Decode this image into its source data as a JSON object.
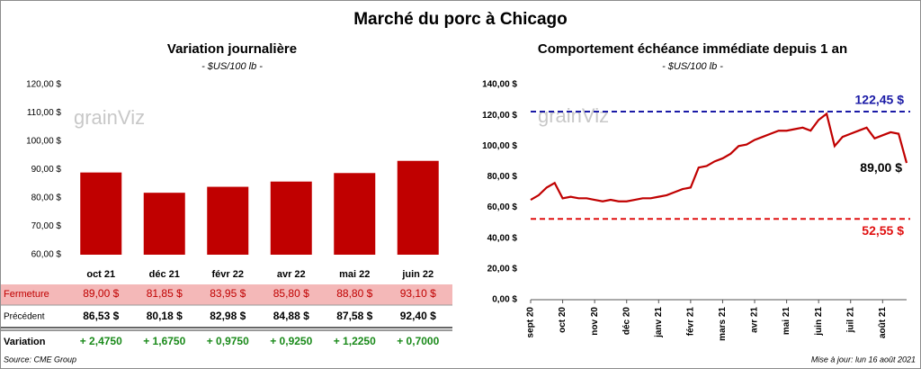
{
  "title": "Marché du porc à Chicago",
  "chart_data": [
    {
      "type": "bar",
      "title": "Variation journalière",
      "subtitle": "- $US/100 lb -",
      "categories": [
        "oct 21",
        "déc 21",
        "févr 22",
        "avr 22",
        "mai 22",
        "juin 22"
      ],
      "values": [
        89.0,
        81.85,
        83.95,
        85.8,
        88.8,
        93.1
      ],
      "value_labels": [
        "89,00 $",
        "81,85 $",
        "83,95 $",
        "85,80 $",
        "88,80 $",
        "93,10 $"
      ],
      "color": "#c00000",
      "ylim": [
        60,
        120
      ],
      "yticks": [
        {
          "value": 60,
          "label": "60,00 $"
        },
        {
          "value": 70,
          "label": "70,00 $"
        },
        {
          "value": 80,
          "label": "80,00 $"
        },
        {
          "value": 90,
          "label": "90,00 $"
        },
        {
          "value": 100,
          "label": "100,00 $"
        },
        {
          "value": 110,
          "label": "110,00 $"
        },
        {
          "value": 120,
          "label": "120,00 $"
        }
      ],
      "watermark": "grainViz"
    },
    {
      "type": "line",
      "title": "Comportement  échéance immédiate depuis 1 an",
      "subtitle": "- $US/100 lb -",
      "categories": [
        "sept 20",
        null,
        null,
        null,
        "oct 20",
        null,
        null,
        null,
        "nov 20",
        null,
        null,
        null,
        "déc 20",
        null,
        null,
        null,
        "janv 21",
        null,
        null,
        null,
        "févr 21",
        null,
        null,
        null,
        "mars 21",
        null,
        null,
        null,
        "avr 21",
        null,
        null,
        null,
        "mai 21",
        null,
        null,
        null,
        "juin 21",
        null,
        null,
        null,
        "juil 21",
        null,
        null,
        null,
        "août 21",
        null,
        null,
        null
      ],
      "series": [
        {
          "color": "#c00000",
          "values": [
            65,
            68,
            73,
            76,
            66,
            67,
            66,
            66,
            65,
            64,
            65,
            64,
            64,
            65,
            66,
            66,
            67,
            68,
            70,
            72,
            73,
            86,
            87,
            90,
            92,
            95,
            100,
            101,
            104,
            106,
            108,
            110,
            110,
            111,
            112,
            110,
            117,
            121,
            100,
            106,
            108,
            110,
            112,
            105,
            107,
            109,
            108,
            89
          ]
        }
      ],
      "ylim": [
        0,
        140
      ],
      "yticks": [
        {
          "value": 0,
          "label": "0,00 $"
        },
        {
          "value": 20,
          "label": "20,00 $"
        },
        {
          "value": 40,
          "label": "40,00 $"
        },
        {
          "value": 60,
          "label": "60,00 $"
        },
        {
          "value": 80,
          "label": "80,00 $"
        },
        {
          "value": 100,
          "label": "100,00 $"
        },
        {
          "value": 120,
          "label": "120,00 $"
        },
        {
          "value": 140,
          "label": "140,00 $"
        }
      ],
      "reference_lines": [
        {
          "value": 122.45,
          "label": "122,45 $",
          "color": "#1a1aa6"
        },
        {
          "value": 52.55,
          "label": "52,55 $",
          "color": "#e01010"
        }
      ],
      "annotations": [
        {
          "value": 89,
          "text": "89,00 $"
        }
      ],
      "watermark": "grainViz"
    }
  ],
  "table": {
    "fermeture_label": "Fermeture",
    "rows": [
      {
        "label": "Précédent",
        "cells": [
          "86,53 $",
          "80,18 $",
          "82,98 $",
          "84,88 $",
          "87,58 $",
          "92,40 $"
        ]
      },
      {
        "label": "Variation",
        "cells": [
          "+ 2,4750",
          "+ 1,6750",
          "+ 0,9750",
          "+ 0,9250",
          "+ 1,2250",
          "+ 0,7000"
        ]
      }
    ]
  },
  "footer": {
    "source": "Source: CME Group",
    "updated": "Mise à jour: lun 16 août 2021"
  }
}
